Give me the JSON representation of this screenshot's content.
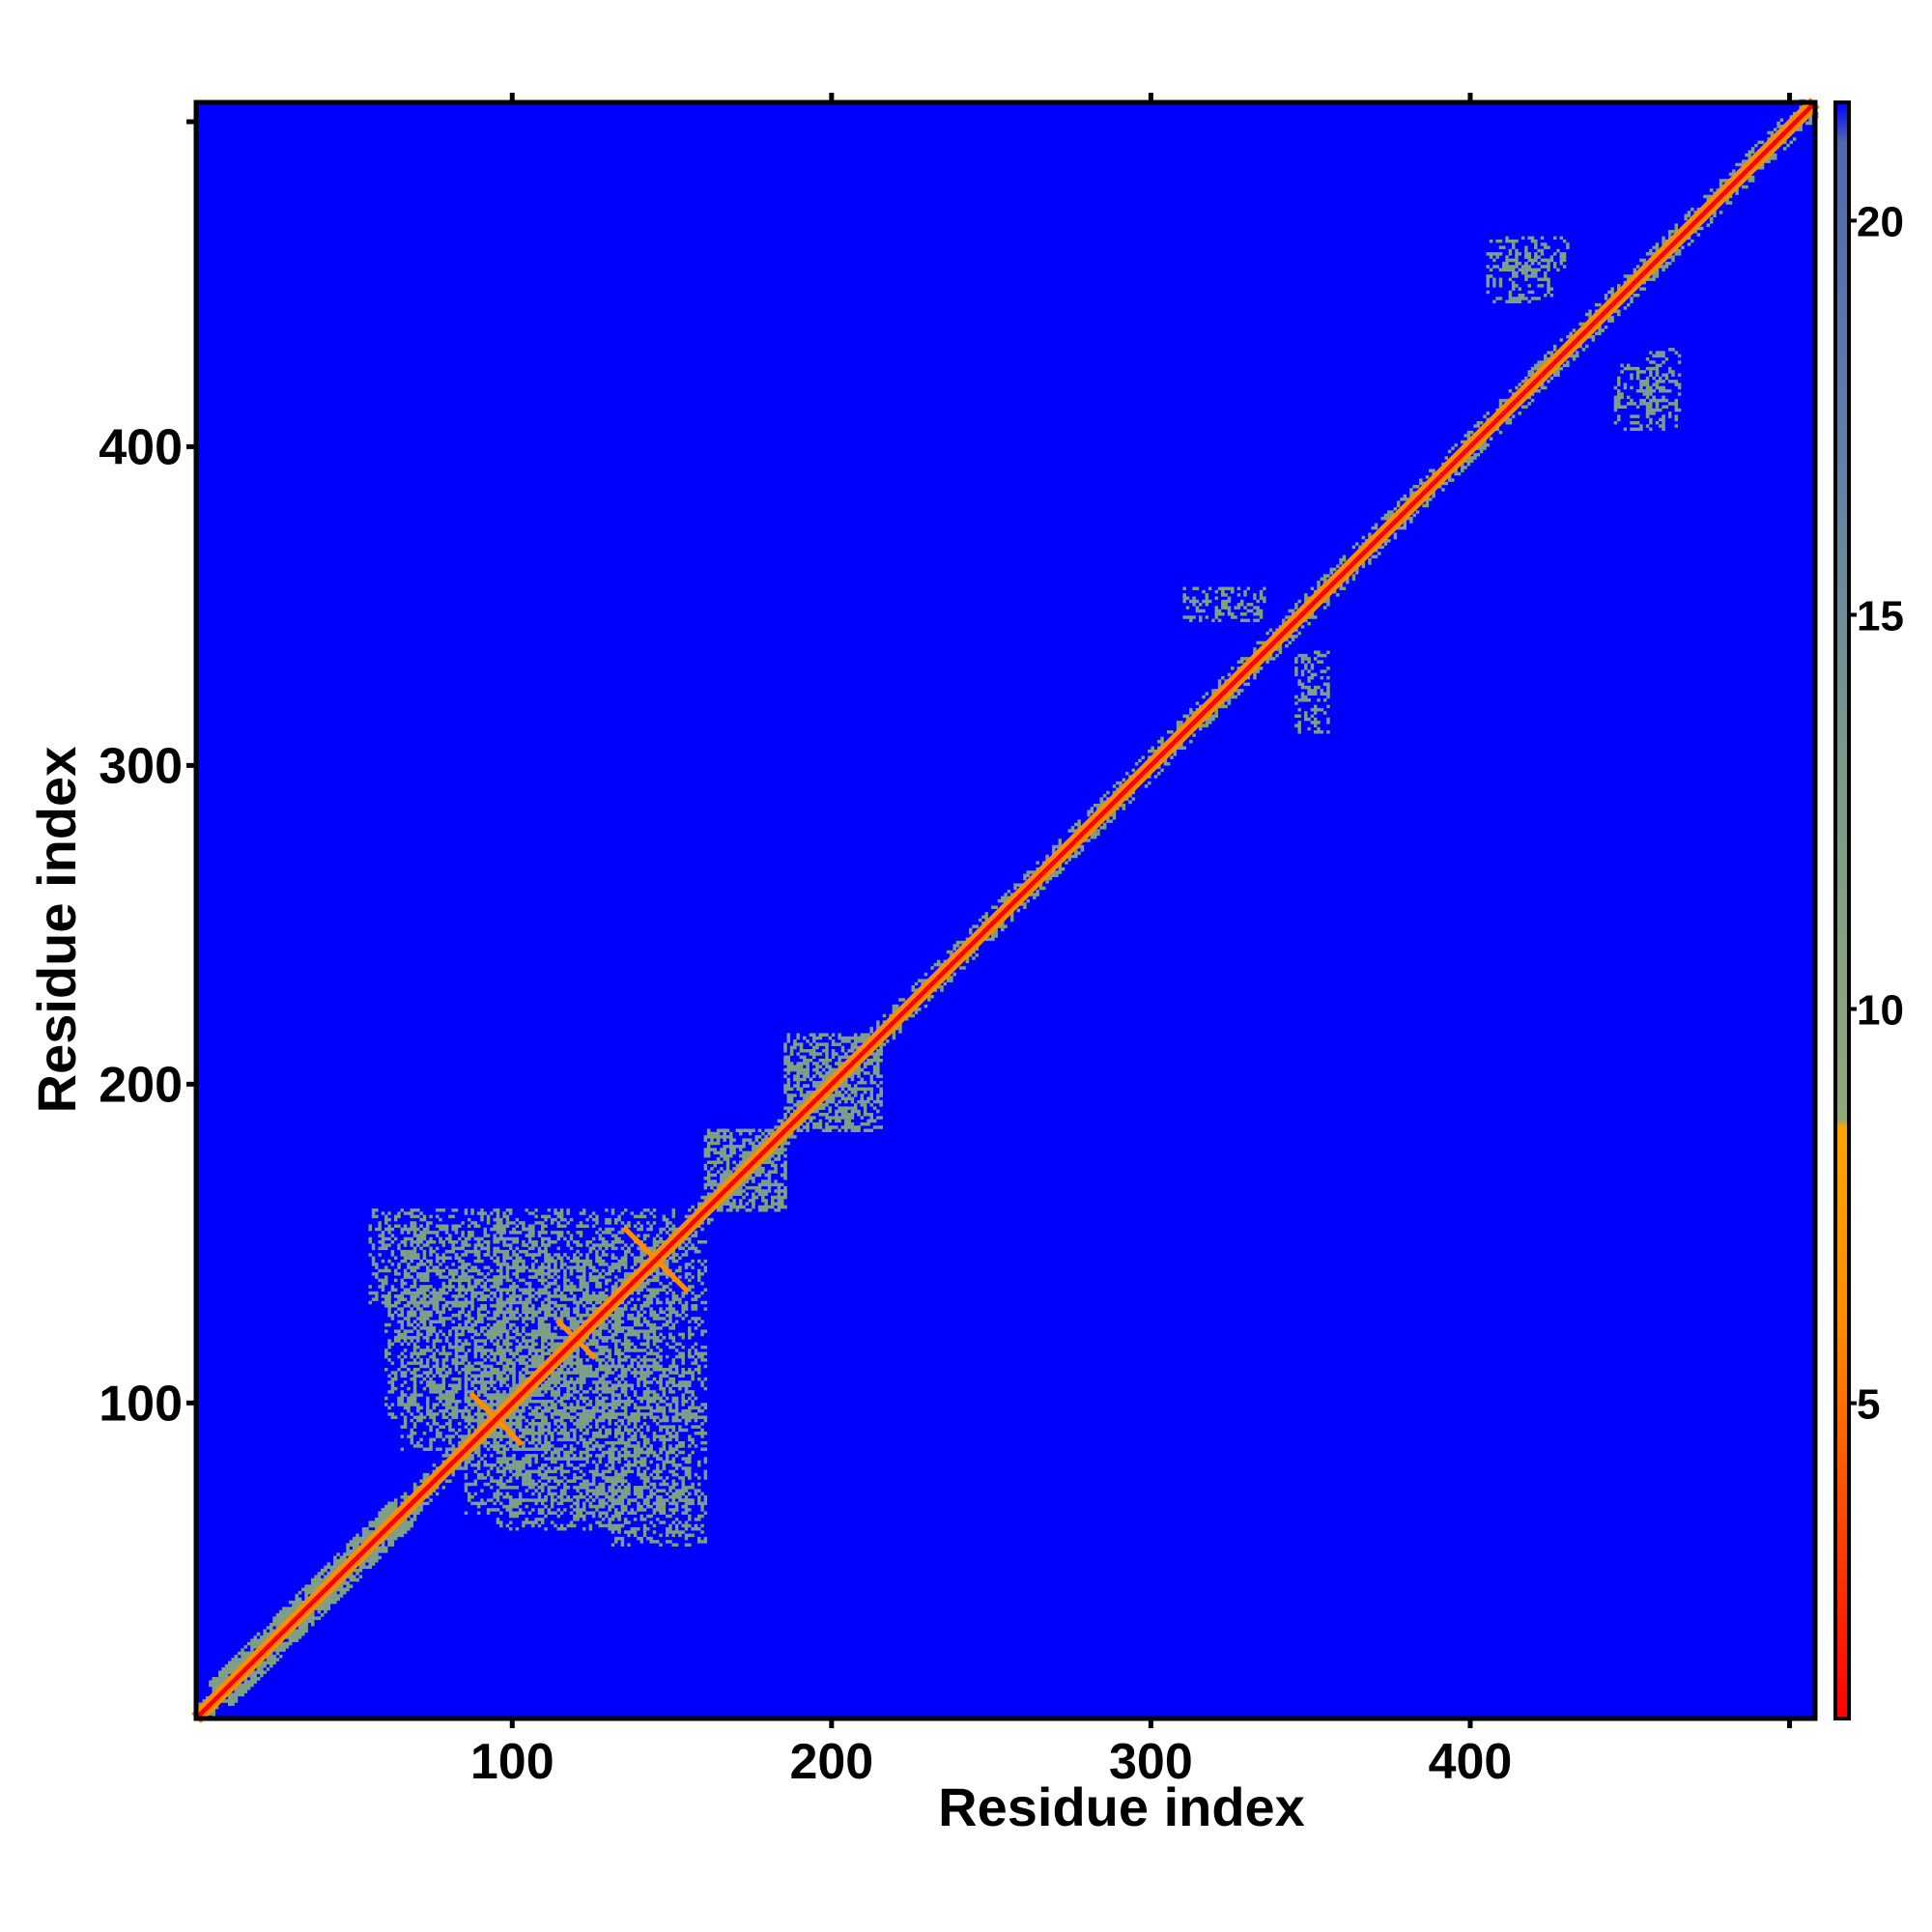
{
  "chart_data": {
    "type": "heatmap",
    "title": "",
    "xlabel": "Residue index",
    "ylabel": "Residue index",
    "xlim": [
      1,
      508
    ],
    "ylim": [
      1,
      508
    ],
    "x_ticks": [
      100,
      200,
      300,
      400
    ],
    "y_ticks": [
      100,
      200,
      300,
      400
    ],
    "colorbar": {
      "ticks": [
        5,
        10,
        15,
        20
      ],
      "range": [
        1,
        21.5
      ],
      "colors": [
        {
          "value": 1,
          "color": "#ff0000"
        },
        {
          "value": 6,
          "color": "#ff8c00"
        },
        {
          "value": 8.5,
          "color": "#ffa500"
        },
        {
          "value": 8.6,
          "color": "#8fa878"
        },
        {
          "value": 13,
          "color": "#7a9a88"
        },
        {
          "value": 17,
          "color": "#6080a8"
        },
        {
          "value": 21,
          "color": "#4f6ab0"
        },
        {
          "value": 21.5,
          "color": "#0000ff"
        }
      ]
    },
    "background_value": 21.5,
    "background_color": "#0000ff",
    "diagonal": {
      "value": 1,
      "color": "#ff0000"
    },
    "near_diagonal_band": {
      "value": 6,
      "color": "#ff8c00",
      "width_residues": 3
    },
    "contact_value": 12,
    "contact_color": "#7f9f86",
    "contact_regions": [
      {
        "i": [
          5,
          70
        ],
        "j": [
          5,
          70
        ],
        "note": "near-diagonal helix band"
      },
      {
        "i": [
          65,
          110
        ],
        "j": [
          85,
          155
        ]
      },
      {
        "i": [
          95,
          135
        ],
        "j": [
          60,
          100
        ]
      },
      {
        "i": [
          110,
          160
        ],
        "j": [
          95,
          150
        ]
      },
      {
        "i": [
          130,
          160
        ],
        "j": [
          55,
          95
        ]
      },
      {
        "i": [
          160,
          185
        ],
        "j": [
          160,
          185
        ]
      },
      {
        "i": [
          185,
          215
        ],
        "j": [
          185,
          215
        ]
      },
      {
        "i": [
          310,
          325
        ],
        "j": [
          345,
          355
        ]
      },
      {
        "i": [
          345,
          355
        ],
        "j": [
          320,
          335
        ]
      },
      {
        "i": [
          405,
          430
        ],
        "j": [
          455,
          465
        ]
      },
      {
        "i": [
          445,
          460
        ],
        "j": [
          405,
          425
        ]
      }
    ],
    "cross_contacts": [
      {
        "center": [
          95,
          95
        ],
        "arm": 8
      },
      {
        "center": [
          120,
          120
        ],
        "arm": 6
      },
      {
        "center": [
          145,
          145
        ],
        "arm": 10
      }
    ]
  }
}
